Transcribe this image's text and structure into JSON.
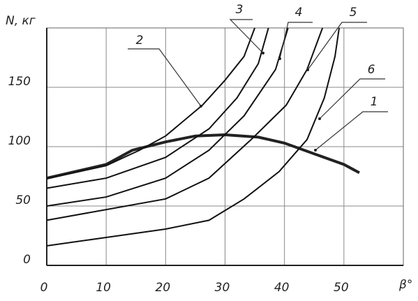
{
  "chart_data": {
    "type": "line",
    "y_label": "N, кг",
    "x_label": "β°",
    "xlim": [
      0,
      60
    ],
    "ylim": [
      0,
      200
    ],
    "xticks": [
      0,
      10,
      20,
      30,
      40,
      50
    ],
    "yticks": [
      0,
      50,
      100,
      150
    ],
    "grid": true,
    "series": [
      {
        "name": "1",
        "color": "#222222",
        "x": [
          0,
          10,
          14.4,
          20,
          25,
          30,
          35.6,
          40,
          45,
          50,
          52.6
        ],
        "values": [
          73.5,
          85,
          97,
          104,
          109,
          110,
          108,
          103,
          94,
          85,
          78
        ]
      },
      {
        "name": "2",
        "color": "#111111",
        "x": [
          0,
          10,
          15.6,
          20,
          26.2,
          30,
          33.2,
          35
        ],
        "values": [
          73,
          84,
          97,
          109,
          135,
          156,
          176,
          200
        ]
      },
      {
        "name": "3",
        "color": "#111111",
        "x": [
          0,
          10,
          20,
          27.3,
          32,
          35.6,
          37.3
        ],
        "values": [
          65,
          73.5,
          91,
          115,
          141,
          170,
          200
        ]
      },
      {
        "name": "4",
        "color": "#111111",
        "x": [
          0,
          10,
          20,
          27.3,
          33.2,
          38.5,
          40.6
        ],
        "values": [
          50,
          57.6,
          73.5,
          97,
          126,
          165,
          200
        ]
      },
      {
        "name": "5",
        "color": "#111111",
        "x": [
          0,
          10,
          20,
          27.3,
          34.4,
          40.3,
          43.8,
          46.4
        ],
        "values": [
          38,
          47,
          56,
          73.5,
          106,
          135,
          165,
          200
        ]
      },
      {
        "name": "6",
        "color": "#111111",
        "x": [
          0,
          10,
          20,
          27.3,
          33.2,
          39.1,
          43.8,
          46.7,
          48.5,
          49.2
        ],
        "values": [
          16.5,
          23.5,
          30.6,
          38,
          56,
          79,
          106,
          141,
          176,
          200
        ]
      }
    ]
  }
}
